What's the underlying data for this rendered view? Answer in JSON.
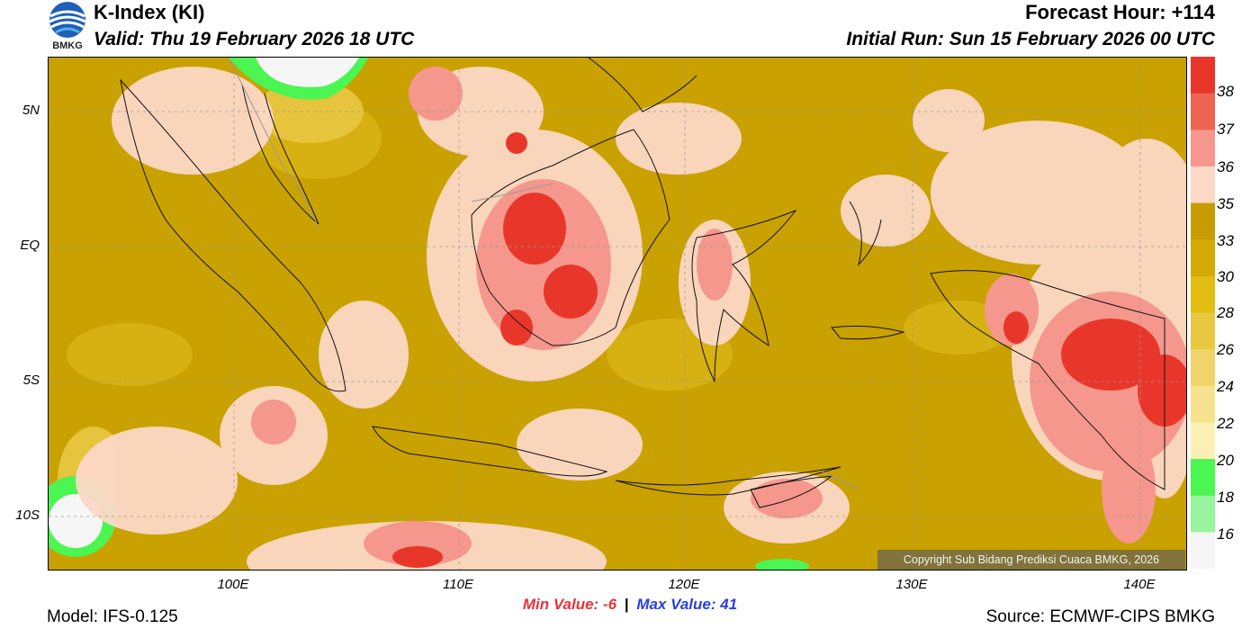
{
  "header": {
    "title": "K-Index (KI)",
    "valid": "Valid: Thu 19 February 2026 18 UTC",
    "forecast_hour": "Forecast Hour: +114",
    "initial_run": "Initial Run: Sun 15 February 2026 00 UTC",
    "logo_text": "BMKG"
  },
  "map": {
    "lat_labels": [
      "5N",
      "EQ",
      "5S",
      "10S"
    ],
    "lon_labels": [
      "100E",
      "110E",
      "120E",
      "130E",
      "140E"
    ],
    "copyright": "Copyright Sub Bidang Prediksi Cuaca BMKG, 2026"
  },
  "colorbar": {
    "labels": [
      "38",
      "37",
      "36",
      "35",
      "33",
      "30",
      "28",
      "26",
      "24",
      "22",
      "20",
      "18",
      "16"
    ],
    "colors": [
      "#e8372a",
      "#ef6352",
      "#f5978c",
      "#fcd8c6",
      "#c79c00",
      "#d4aa06",
      "#e2bd13",
      "#e9c841",
      "#f0d369",
      "#f6e18e",
      "#fbf0b3",
      "#4bf552",
      "#98f59d",
      "#f6f6f6"
    ]
  },
  "footer": {
    "min_label": "Min Value:",
    "min_value": "-6",
    "max_label": "Max Value:",
    "max_value": "41",
    "model": "Model: IFS-0.125",
    "source": "Source: ECMWF-CIPS BMKG"
  },
  "colors": {
    "base_field": "#c9a100",
    "pink_light": "#fcd8c6",
    "pink_mid": "#f5978c",
    "red_high": "#e8372a",
    "green_low": "#4bf552"
  }
}
